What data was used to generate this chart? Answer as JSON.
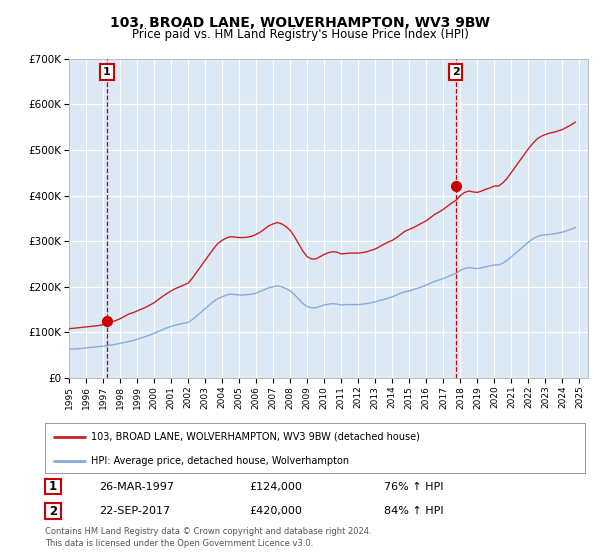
{
  "title": "103, BROAD LANE, WOLVERHAMPTON, WV3 9BW",
  "subtitle": "Price paid vs. HM Land Registry's House Price Index (HPI)",
  "background_color": "#ffffff",
  "plot_bg_color": "#dce9f5",
  "grid_color": "#ffffff",
  "ylim": [
    0,
    700000
  ],
  "xlim_start": 1995.0,
  "xlim_end": 2025.5,
  "yticks": [
    0,
    100000,
    200000,
    300000,
    400000,
    500000,
    600000,
    700000
  ],
  "ytick_labels": [
    "£0",
    "£100K",
    "£200K",
    "£300K",
    "£400K",
    "£500K",
    "£600K",
    "£700K"
  ],
  "xticks": [
    1995,
    1996,
    1997,
    1998,
    1999,
    2000,
    2001,
    2002,
    2003,
    2004,
    2005,
    2006,
    2007,
    2008,
    2009,
    2010,
    2011,
    2012,
    2013,
    2014,
    2015,
    2016,
    2017,
    2018,
    2019,
    2020,
    2021,
    2022,
    2023,
    2024,
    2025
  ],
  "sale1_x": 1997.23,
  "sale1_y": 124000,
  "sale2_x": 2017.73,
  "sale2_y": 420000,
  "sale1_label": "1",
  "sale2_label": "2",
  "vline_color": "#cc0000",
  "marker_color": "#cc0000",
  "marker_size": 7,
  "legend_label_red": "103, BROAD LANE, WOLVERHAMPTON, WV3 9BW (detached house)",
  "legend_label_blue": "HPI: Average price, detached house, Wolverhampton",
  "table_row1": [
    "1",
    "26-MAR-1997",
    "£124,000",
    "76% ↑ HPI"
  ],
  "table_row2": [
    "2",
    "22-SEP-2017",
    "£420,000",
    "84% ↑ HPI"
  ],
  "footnote1": "Contains HM Land Registry data © Crown copyright and database right 2024.",
  "footnote2": "This data is licensed under the Open Government Licence v3.0.",
  "red_line_color": "#cc2222",
  "blue_line_color": "#88aadd",
  "hpi_x": [
    1995.0,
    1995.25,
    1995.5,
    1995.75,
    1996.0,
    1996.25,
    1996.5,
    1996.75,
    1997.0,
    1997.25,
    1997.5,
    1997.75,
    1998.0,
    1998.25,
    1998.5,
    1998.75,
    1999.0,
    1999.25,
    1999.5,
    1999.75,
    2000.0,
    2000.25,
    2000.5,
    2000.75,
    2001.0,
    2001.25,
    2001.5,
    2001.75,
    2002.0,
    2002.25,
    2002.5,
    2002.75,
    2003.0,
    2003.25,
    2003.5,
    2003.75,
    2004.0,
    2004.25,
    2004.5,
    2004.75,
    2005.0,
    2005.25,
    2005.5,
    2005.75,
    2006.0,
    2006.25,
    2006.5,
    2006.75,
    2007.0,
    2007.25,
    2007.5,
    2007.75,
    2008.0,
    2008.25,
    2008.5,
    2008.75,
    2009.0,
    2009.25,
    2009.5,
    2009.75,
    2010.0,
    2010.25,
    2010.5,
    2010.75,
    2011.0,
    2011.25,
    2011.5,
    2011.75,
    2012.0,
    2012.25,
    2012.5,
    2012.75,
    2013.0,
    2013.25,
    2013.5,
    2013.75,
    2014.0,
    2014.25,
    2014.5,
    2014.75,
    2015.0,
    2015.25,
    2015.5,
    2015.75,
    2016.0,
    2016.25,
    2016.5,
    2016.75,
    2017.0,
    2017.25,
    2017.5,
    2017.75,
    2018.0,
    2018.25,
    2018.5,
    2018.75,
    2019.0,
    2019.25,
    2019.5,
    2019.75,
    2020.0,
    2020.25,
    2020.5,
    2020.75,
    2021.0,
    2021.25,
    2021.5,
    2021.75,
    2022.0,
    2022.25,
    2022.5,
    2022.75,
    2023.0,
    2023.25,
    2023.5,
    2023.75,
    2024.0,
    2024.25,
    2024.5,
    2024.75
  ],
  "hpi_y": [
    63000,
    63500,
    64000,
    65000,
    66000,
    67000,
    68000,
    69000,
    70000,
    71000,
    72500,
    74000,
    76000,
    78000,
    80000,
    82000,
    85000,
    88000,
    91000,
    94000,
    98000,
    102000,
    106000,
    110000,
    113000,
    116000,
    118000,
    120000,
    122000,
    128000,
    136000,
    144000,
    152000,
    160000,
    168000,
    174000,
    178000,
    182000,
    184000,
    183000,
    182000,
    182000,
    183000,
    184000,
    186000,
    190000,
    194000,
    198000,
    200000,
    202000,
    200000,
    196000,
    191000,
    183000,
    173000,
    163000,
    157000,
    154000,
    154000,
    157000,
    160000,
    162000,
    163000,
    162000,
    160000,
    161000,
    161000,
    161000,
    161000,
    162000,
    163000,
    165000,
    167000,
    170000,
    172000,
    175000,
    178000,
    182000,
    186000,
    189000,
    191000,
    194000,
    197000,
    200000,
    204000,
    208000,
    212000,
    215000,
    218000,
    222000,
    226000,
    230000,
    236000,
    240000,
    242000,
    241000,
    240000,
    242000,
    244000,
    246000,
    248000,
    248000,
    252000,
    258000,
    266000,
    274000,
    282000,
    290000,
    298000,
    305000,
    310000,
    313000,
    314000,
    315000,
    316000,
    318000,
    320000,
    323000,
    326000,
    330000
  ],
  "red_x": [
    1995.0,
    1995.25,
    1995.5,
    1995.75,
    1996.0,
    1996.25,
    1996.5,
    1996.75,
    1997.0,
    1997.25,
    1997.5,
    1997.75,
    1998.0,
    1998.25,
    1998.5,
    1998.75,
    1999.0,
    1999.25,
    1999.5,
    1999.75,
    2000.0,
    2000.25,
    2000.5,
    2000.75,
    2001.0,
    2001.25,
    2001.5,
    2001.75,
    2002.0,
    2002.25,
    2002.5,
    2002.75,
    2003.0,
    2003.25,
    2003.5,
    2003.75,
    2004.0,
    2004.25,
    2004.5,
    2004.75,
    2005.0,
    2005.25,
    2005.5,
    2005.75,
    2006.0,
    2006.25,
    2006.5,
    2006.75,
    2007.0,
    2007.25,
    2007.5,
    2007.75,
    2008.0,
    2008.25,
    2008.5,
    2008.75,
    2009.0,
    2009.25,
    2009.5,
    2009.75,
    2010.0,
    2010.25,
    2010.5,
    2010.75,
    2011.0,
    2011.25,
    2011.5,
    2011.75,
    2012.0,
    2012.25,
    2012.5,
    2012.75,
    2013.0,
    2013.25,
    2013.5,
    2013.75,
    2014.0,
    2014.25,
    2014.5,
    2014.75,
    2015.0,
    2015.25,
    2015.5,
    2015.75,
    2016.0,
    2016.25,
    2016.5,
    2016.75,
    2017.0,
    2017.25,
    2017.5,
    2017.75,
    2018.0,
    2018.25,
    2018.5,
    2018.75,
    2019.0,
    2019.25,
    2019.5,
    2019.75,
    2020.0,
    2020.25,
    2020.5,
    2020.75,
    2021.0,
    2021.25,
    2021.5,
    2021.75,
    2022.0,
    2022.25,
    2022.5,
    2022.75,
    2023.0,
    2023.25,
    2023.5,
    2023.75,
    2024.0,
    2024.25,
    2024.5,
    2024.75
  ],
  "red_y": [
    108000,
    109000,
    110000,
    111000,
    112000,
    113000,
    114000,
    115000,
    117000,
    120000,
    123000,
    126000,
    130000,
    135000,
    140000,
    143000,
    147000,
    151000,
    155000,
    160000,
    165000,
    172000,
    179000,
    185000,
    191000,
    196000,
    200000,
    204000,
    208000,
    219000,
    232000,
    245000,
    258000,
    271000,
    284000,
    295000,
    302000,
    307000,
    310000,
    309000,
    308000,
    308000,
    309000,
    311000,
    315000,
    320000,
    327000,
    334000,
    338000,
    341000,
    338000,
    332000,
    324000,
    310000,
    294000,
    278000,
    266000,
    261000,
    261000,
    266000,
    271000,
    275000,
    277000,
    276000,
    272000,
    273000,
    274000,
    274000,
    274000,
    275000,
    277000,
    280000,
    283000,
    288000,
    293000,
    298000,
    302000,
    308000,
    315000,
    322000,
    326000,
    330000,
    335000,
    340000,
    345000,
    352000,
    359000,
    364000,
    370000,
    377000,
    384000,
    390000,
    400000,
    407000,
    410000,
    408000,
    407000,
    410000,
    414000,
    417000,
    421000,
    421000,
    428000,
    438000,
    451000,
    464000,
    477000,
    490000,
    503000,
    514000,
    524000,
    530000,
    534000,
    537000,
    539000,
    542000,
    545000,
    550000,
    555000,
    561000
  ]
}
